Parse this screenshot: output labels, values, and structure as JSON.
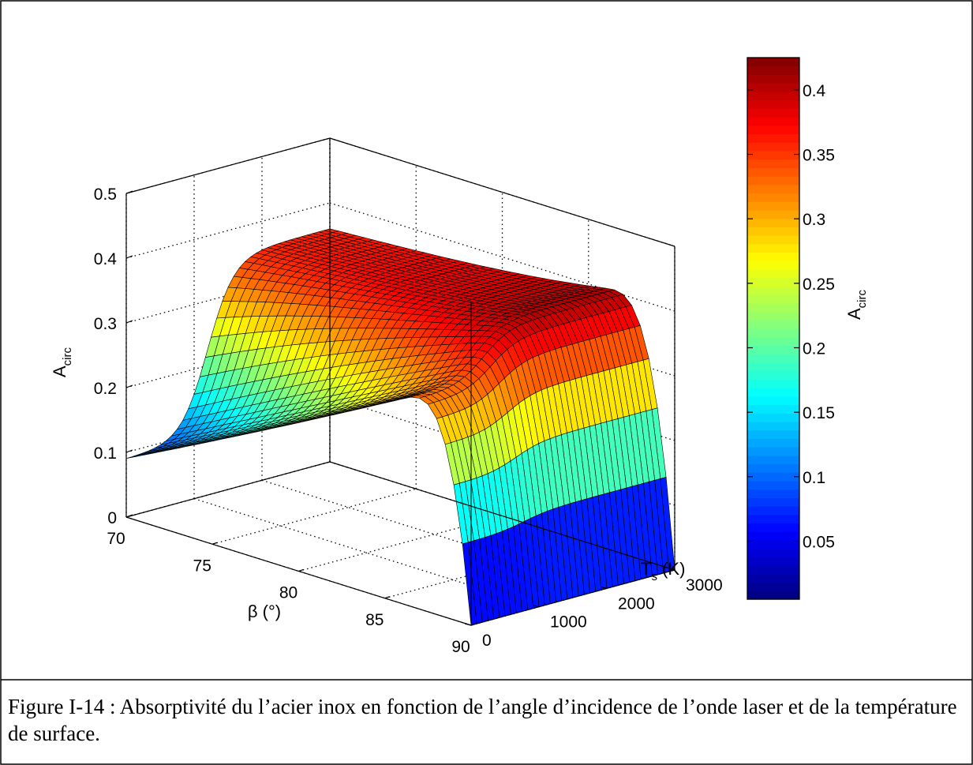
{
  "caption": "Figure I-14 : Absorptivité du l’acier inox en fonction de l’angle d’incidence de l’onde laser et de la température de surface.",
  "chart_data": {
    "type": "surface",
    "colormap": "jet",
    "x": {
      "label": "β (°)",
      "range": [
        70,
        90
      ],
      "ticks": [
        "70",
        "75",
        "80",
        "85",
        "90"
      ]
    },
    "y": {
      "label_main": "T",
      "label_sub": "s",
      "label_tail": " (K)",
      "range": [
        0,
        3000
      ],
      "ticks": [
        "0",
        "1000",
        "2000",
        "3000"
      ]
    },
    "z": {
      "label_main": "A",
      "label_sub": "circ",
      "range": [
        0,
        0.5
      ],
      "ticks": [
        "0",
        "0.1",
        "0.2",
        "0.3",
        "0.4",
        "0.5"
      ]
    },
    "colorbar": {
      "label_main": "A",
      "label_sub": "circ",
      "range": [
        0.005,
        0.425
      ],
      "ticks": [
        "0.05",
        "0.1",
        "0.15",
        "0.2",
        "0.25",
        "0.3",
        "0.35",
        "0.4"
      ]
    },
    "grid": true,
    "surface_samples": [
      {
        "beta": 70,
        "T": 0,
        "A": 0.09
      },
      {
        "beta": 70,
        "T": 3000,
        "A": 0.36
      },
      {
        "beta": 80,
        "T": 3000,
        "A": 0.39
      },
      {
        "beta": 86,
        "T": 3000,
        "A": 0.425
      },
      {
        "beta": 90,
        "T": 3000,
        "A": 0.0
      },
      {
        "beta": 86,
        "T": 0,
        "A": 0.42
      },
      {
        "beta": 90,
        "T": 0,
        "A": 0.0
      }
    ]
  }
}
